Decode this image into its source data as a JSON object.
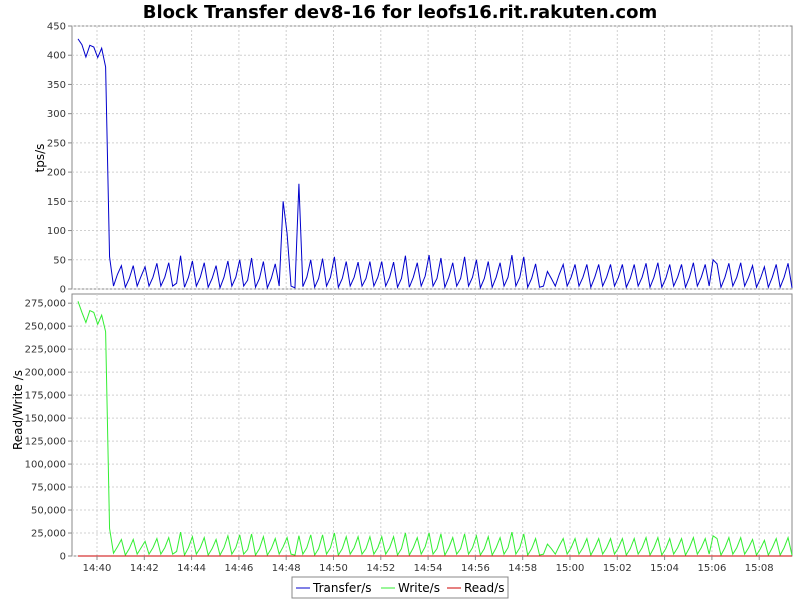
{
  "chart_data": {
    "type": "line",
    "title": "Block Transfer dev8-16 for leofs16.rit.rakuten.com",
    "x_ticks": [
      "14:40",
      "14:42",
      "14:44",
      "14:46",
      "14:48",
      "14:50",
      "14:52",
      "14:54",
      "14:56",
      "14:58",
      "15:00",
      "15:02",
      "15:04",
      "15:06",
      "15:08"
    ],
    "legend_placement": "bottom-center",
    "grid": true,
    "panels": [
      {
        "ylabel": "tps/s",
        "ylim": [
          0,
          450
        ],
        "y_ticks": [
          0,
          50,
          100,
          150,
          200,
          250,
          300,
          350,
          400,
          450
        ],
        "series": [
          {
            "name": "Transfer/s",
            "color": "#0000cc",
            "values": [
              428,
              418,
              397,
              417,
              414,
              396,
              412,
              380,
              55,
              5,
              25,
              40,
              3,
              18,
              40,
              5,
              22,
              38,
              5,
              20,
              44,
              5,
              20,
              45,
              5,
              10,
              57,
              3,
              20,
              48,
              5,
              20,
              45,
              3,
              18,
              40,
              2,
              20,
              48,
              5,
              20,
              50,
              5,
              15,
              53,
              3,
              18,
              47,
              2,
              18,
              43,
              5,
              150,
              95,
              5,
              2,
              180,
              4,
              20,
              50,
              3,
              18,
              52,
              5,
              20,
              55,
              3,
              18,
              47,
              5,
              20,
              46,
              5,
              18,
              47,
              5,
              20,
              47,
              5,
              20,
              46,
              3,
              18,
              57,
              3,
              20,
              45,
              5,
              22,
              58,
              5,
              18,
              53,
              3,
              20,
              45,
              5,
              18,
              55,
              5,
              20,
              50,
              2,
              18,
              47,
              3,
              20,
              45,
              5,
              20,
              58,
              5,
              20,
              55,
              3,
              18,
              43,
              3,
              5,
              30,
              18,
              5,
              25,
              42,
              5,
              20,
              42,
              5,
              20,
              42,
              3,
              20,
              42,
              5,
              20,
              42,
              5,
              20,
              42,
              3,
              18,
              42,
              5,
              20,
              44,
              3,
              20,
              45,
              3,
              18,
              42,
              5,
              20,
              42,
              3,
              20,
              45,
              5,
              20,
              42,
              5,
              50,
              43,
              3,
              20,
              44,
              5,
              20,
              45,
              5,
              20,
              40,
              3,
              18,
              38,
              3,
              20,
              42,
              3,
              20,
              44,
              2
            ]
          }
        ]
      },
      {
        "ylabel": "Read/Write /s",
        "ylim": [
          0,
          285000
        ],
        "y_ticks": [
          0,
          25000,
          50000,
          75000,
          100000,
          125000,
          150000,
          175000,
          200000,
          225000,
          250000,
          275000
        ],
        "y_tick_labels": [
          "0",
          "25,000",
          "50,000",
          "75,000",
          "100,000",
          "125,000",
          "150,000",
          "175,000",
          "200,000",
          "225,000",
          "250,000",
          "275,000"
        ],
        "series": [
          {
            "name": "Write/s",
            "color": "#33ee33",
            "values": [
              277000,
              265000,
              254000,
              267000,
              265000,
              252000,
              262000,
              244000,
              30000,
              3000,
              10000,
              18000,
              1000,
              8000,
              18000,
              2000,
              9000,
              16000,
              2000,
              9000,
              19000,
              2000,
              9000,
              20000,
              2000,
              5000,
              26000,
              1000,
              9000,
              21000,
              2000,
              9000,
              20000,
              1000,
              8000,
              18000,
              1000,
              9000,
              22000,
              2000,
              9000,
              23000,
              2000,
              7000,
              24000,
              1000,
              8000,
              21000,
              1000,
              8000,
              19000,
              2000,
              10000,
              20000,
              2000,
              1000,
              22000,
              2000,
              9000,
              23000,
              1000,
              8000,
              23000,
              2000,
              9000,
              25000,
              1000,
              8000,
              21000,
              2000,
              9000,
              21000,
              2000,
              8000,
              21000,
              2000,
              9000,
              21000,
              2000,
              9000,
              21000,
              1000,
              8000,
              25000,
              1000,
              9000,
              20000,
              2000,
              10000,
              25000,
              2000,
              8000,
              24000,
              1000,
              9000,
              20000,
              2000,
              8000,
              24000,
              2000,
              9000,
              22000,
              1000,
              8000,
              21000,
              1000,
              9000,
              20000,
              2000,
              9000,
              26000,
              2000,
              9000,
              24000,
              1000,
              8000,
              19000,
              1000,
              2000,
              13000,
              8000,
              2000,
              11000,
              19000,
              2000,
              9000,
              19000,
              2000,
              9000,
              19000,
              1000,
              9000,
              19000,
              2000,
              9000,
              19000,
              2000,
              9000,
              19000,
              1000,
              8000,
              19000,
              2000,
              9000,
              20000,
              1000,
              9000,
              20000,
              1000,
              8000,
              19000,
              2000,
              9000,
              19000,
              1000,
              9000,
              20000,
              2000,
              9000,
              19000,
              2000,
              22000,
              19000,
              1000,
              9000,
              20000,
              2000,
              9000,
              20000,
              2000,
              9000,
              18000,
              1000,
              8000,
              17000,
              1000,
              9000,
              19000,
              1000,
              9000,
              20000,
              1000
            ]
          },
          {
            "name": "Read/s",
            "color": "#cc0000",
            "values": [
              0,
              0,
              0,
              0,
              0,
              0,
              0,
              0,
              0,
              0,
              0,
              0,
              0,
              0,
              0,
              0,
              0,
              0,
              0,
              0,
              0,
              0,
              0,
              0,
              0,
              0,
              0,
              0,
              0,
              0,
              0,
              0,
              0,
              0,
              0,
              0,
              0,
              0,
              0,
              0,
              0,
              0,
              0,
              0,
              0,
              0,
              0,
              0,
              0,
              0,
              0,
              0,
              0,
              0,
              0,
              0,
              0,
              0,
              0,
              0,
              0,
              0,
              0,
              0,
              0,
              0,
              0,
              0,
              0,
              0,
              0,
              0,
              0,
              0,
              0,
              0,
              0,
              0,
              0,
              0,
              0,
              0,
              0,
              0,
              0,
              0,
              0,
              0,
              0,
              0,
              0,
              0,
              0,
              0,
              0,
              0,
              0,
              0,
              0,
              0,
              0,
              0,
              0,
              0,
              0,
              0,
              0,
              0,
              0,
              0,
              0,
              0,
              0,
              0,
              0,
              0,
              0,
              0,
              0,
              0,
              0,
              0,
              0,
              0,
              0,
              0,
              0,
              0,
              0,
              0,
              0,
              0,
              0,
              0,
              0,
              0,
              0,
              0,
              0,
              0,
              0,
              0,
              0,
              0,
              0,
              0,
              0,
              0,
              0,
              0,
              0,
              0,
              0,
              0,
              0,
              0,
              0,
              0,
              0,
              0,
              0,
              0,
              0,
              0,
              0,
              0,
              0,
              0,
              0,
              0,
              0,
              0,
              0,
              0,
              0,
              0,
              0,
              0,
              0,
              0,
              0,
              0,
              0,
              0,
              0,
              0,
              0,
              0,
              0,
              0,
              0,
              0,
              0
            ]
          }
        ]
      }
    ]
  }
}
